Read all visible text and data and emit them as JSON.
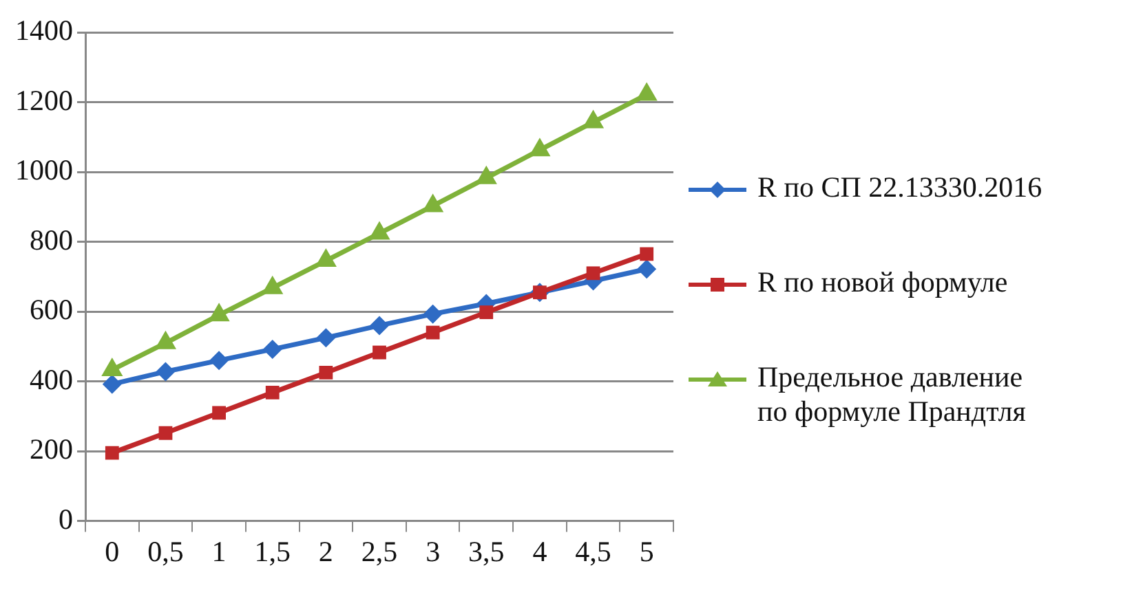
{
  "chart_data": {
    "type": "line",
    "categories": [
      "0",
      "0,5",
      "1",
      "1,5",
      "2",
      "2,5",
      "3",
      "3,5",
      "4",
      "4,5",
      "5"
    ],
    "series": [
      {
        "name": "R по СП 22.13330.2016",
        "color": "#2e6bc4",
        "marker": "diamond",
        "values": [
          392,
          428,
          460,
          492,
          525,
          560,
          593,
          623,
          655,
          688,
          722
        ]
      },
      {
        "name": "R по новой формуле",
        "color": "#c0282a",
        "marker": "square",
        "values": [
          195,
          252,
          310,
          368,
          425,
          483,
          540,
          598,
          655,
          710,
          765
        ]
      },
      {
        "name": "Предельное давление по формуле Прандтля",
        "color": "#7fb23a",
        "marker": "triangle",
        "values": [
          433,
          510,
          590,
          668,
          746,
          824,
          903,
          983,
          1063,
          1143,
          1222
        ]
      }
    ],
    "ylim": [
      0,
      1400
    ],
    "yticks": [
      0,
      200,
      400,
      600,
      800,
      1000,
      1200,
      1400
    ],
    "grid": "y",
    "legend": "right",
    "line_style": "solid"
  }
}
